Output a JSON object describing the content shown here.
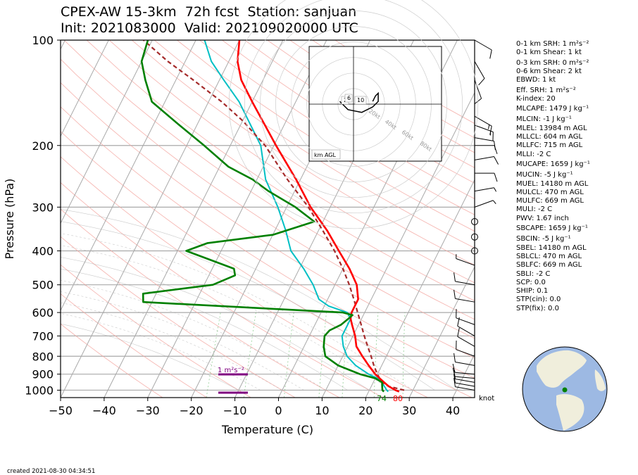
{
  "header": {
    "title_line1": "CPEX-AW 15-3km  72h fcst  Station: sanjuan",
    "title_line2": "Init: 2021083000  Valid: 202109020000 UTC"
  },
  "footer": {
    "created": "created 2021-08-30 04:34:51"
  },
  "chart_data": {
    "type": "line",
    "xlabel": "Temperature (C)",
    "ylabel": "Pressure (hPa)",
    "xlim": [
      -50,
      45
    ],
    "ylim": [
      1050,
      100
    ],
    "y_scale": "log",
    "xticks": [
      -50,
      -40,
      -30,
      -20,
      -10,
      0,
      10,
      20,
      30,
      40
    ],
    "yticks": [
      100,
      200,
      300,
      400,
      500,
      600,
      700,
      800,
      900,
      1000
    ],
    "surface_labels": {
      "dewpoint": "74",
      "temperature": "80"
    },
    "srh_label": "1 m²s⁻²",
    "wind_unit": "knot",
    "colors": {
      "temperature": "#ff0000",
      "dewpoint": "#008000",
      "wetbulb": "#00bfc4",
      "parcel": "#a52a2a",
      "srh": "#800080"
    },
    "temperature": [
      [
        1010,
        27
      ],
      [
        1000,
        26
      ],
      [
        975,
        24
      ],
      [
        950,
        22.5
      ],
      [
        925,
        21
      ],
      [
        900,
        19.5
      ],
      [
        850,
        17
      ],
      [
        800,
        14.5
      ],
      [
        750,
        12
      ],
      [
        700,
        10.5
      ],
      [
        650,
        8.5
      ],
      [
        625,
        7.5
      ],
      [
        600,
        7
      ],
      [
        575,
        7
      ],
      [
        550,
        7
      ],
      [
        500,
        5
      ],
      [
        450,
        1.5
      ],
      [
        400,
        -3
      ],
      [
        350,
        -8
      ],
      [
        300,
        -14.5
      ],
      [
        250,
        -21
      ],
      [
        200,
        -29.5
      ],
      [
        150,
        -40
      ],
      [
        130,
        -45
      ],
      [
        115,
        -48
      ],
      [
        100,
        -50
      ]
    ],
    "dewpoint": [
      [
        1010,
        23.5
      ],
      [
        1000,
        23
      ],
      [
        975,
        22.5
      ],
      [
        950,
        22
      ],
      [
        925,
        20
      ],
      [
        900,
        16
      ],
      [
        850,
        10
      ],
      [
        800,
        6
      ],
      [
        750,
        4.5
      ],
      [
        700,
        3.5
      ],
      [
        675,
        4
      ],
      [
        650,
        6
      ],
      [
        625,
        7
      ],
      [
        610,
        7.5
      ],
      [
        600,
        5
      ],
      [
        560,
        -42
      ],
      [
        530,
        -43
      ],
      [
        500,
        -28
      ],
      [
        470,
        -24
      ],
      [
        450,
        -25
      ],
      [
        400,
        -38
      ],
      [
        380,
        -34
      ],
      [
        360,
        -20
      ],
      [
        330,
        -12
      ],
      [
        300,
        -18
      ],
      [
        270,
        -26
      ],
      [
        250,
        -31
      ],
      [
        230,
        -38
      ],
      [
        200,
        -46
      ],
      [
        175,
        -54
      ],
      [
        150,
        -63
      ],
      [
        130,
        -67
      ],
      [
        115,
        -70
      ],
      [
        100,
        -71
      ]
    ],
    "wetbulb": [
      [
        1010,
        24.5
      ],
      [
        1000,
        24
      ],
      [
        975,
        23
      ],
      [
        950,
        22
      ],
      [
        925,
        20.5
      ],
      [
        900,
        18
      ],
      [
        850,
        14
      ],
      [
        800,
        11
      ],
      [
        750,
        9
      ],
      [
        700,
        7.5
      ],
      [
        650,
        7.5
      ],
      [
        625,
        7.5
      ],
      [
        600,
        6
      ],
      [
        575,
        1
      ],
      [
        550,
        -2
      ],
      [
        500,
        -5
      ],
      [
        450,
        -9
      ],
      [
        400,
        -14
      ],
      [
        350,
        -17.5
      ],
      [
        300,
        -22
      ],
      [
        250,
        -28
      ],
      [
        200,
        -33
      ],
      [
        150,
        -43
      ],
      [
        130,
        -49
      ],
      [
        115,
        -54
      ],
      [
        100,
        -58
      ]
    ],
    "parcel": [
      [
        1000,
        28
      ],
      [
        975,
        24
      ],
      [
        950,
        22
      ],
      [
        925,
        21
      ],
      [
        900,
        20
      ],
      [
        850,
        18.2
      ],
      [
        800,
        16.5
      ],
      [
        750,
        14.6
      ],
      [
        700,
        12.6
      ],
      [
        650,
        10.6
      ],
      [
        600,
        8.4
      ],
      [
        550,
        6
      ],
      [
        500,
        3.3
      ],
      [
        450,
        0
      ],
      [
        400,
        -4
      ],
      [
        350,
        -9
      ],
      [
        300,
        -15
      ],
      [
        250,
        -23
      ],
      [
        200,
        -32
      ],
      [
        170,
        -40
      ],
      [
        150,
        -47
      ],
      [
        130,
        -56
      ],
      [
        115,
        -64
      ],
      [
        100,
        -72
      ]
    ],
    "indices": [
      "0-1 km SRH: 1 m²s⁻²",
      "0-1 km Shear: 1 kt",
      "0-3 km SRH: 0 m²s⁻²",
      "0-6 km Shear: 2 kt",
      "EBWD: 1 kt",
      "Eff. SRH: 1 m²s⁻²",
      "K-index: 20",
      "MLCAPE: 1479 J kg⁻¹",
      "MLCIN: -1 J kg⁻¹",
      "MLEL: 13984 m AGL",
      "MLLCL: 604 m AGL",
      "MLLFC: 715 m AGL",
      "MLLI: -2 C",
      "MUCAPE: 1659 J kg⁻¹",
      "MUCIN: -5 J kg⁻¹",
      "MUEL: 14180 m AGL",
      "MULCL: 470 m AGL",
      "MULFC: 669 m AGL",
      "MULI: -2 C",
      "PWV: 1.67 inch",
      "SBCAPE: 1659 J kg⁻¹",
      "SBCIN: -5 J kg⁻¹",
      "SBEL: 14180 m AGL",
      "SBLCL: 470 m AGL",
      "SBLFC: 669 m AGL",
      "SBLI: -2 C",
      "SCP: 0.0",
      "SHIP: 0.1",
      "STP(cin): 0.0",
      "STP(fix): 0.0"
    ],
    "hodograph": {
      "label": "km AGL",
      "ring_labels": [
        "20kt",
        "40kt",
        "60kt",
        "80kt"
      ],
      "height_labels": [
        "2",
        "6",
        "10"
      ],
      "points": [
        [
          -5,
          1
        ],
        [
          -2,
          -2
        ],
        [
          3,
          -3
        ],
        [
          7,
          -1
        ],
        [
          9,
          1
        ],
        [
          9,
          4
        ],
        [
          8,
          3
        ],
        [
          7,
          1
        ]
      ]
    },
    "wind_barbs": [
      {
        "p": 100,
        "speed": 10,
        "dir": 300
      },
      {
        "p": 115,
        "speed": 10,
        "dir": 330
      },
      {
        "p": 130,
        "speed": 10,
        "dir": 340
      },
      {
        "p": 165,
        "speed": 15,
        "dir": 300
      },
      {
        "p": 175,
        "speed": 15,
        "dir": 290
      },
      {
        "p": 190,
        "speed": 10,
        "dir": 280
      },
      {
        "p": 200,
        "speed": 10,
        "dir": 270
      },
      {
        "p": 220,
        "speed": 10,
        "dir": 260
      },
      {
        "p": 240,
        "speed": 10,
        "dir": 270
      },
      {
        "p": 270,
        "speed": 5,
        "dir": 260
      },
      {
        "p": 300,
        "speed": 5,
        "dir": 250
      },
      {
        "p": 330,
        "speed": 0,
        "dir": 0
      },
      {
        "p": 365,
        "speed": 0,
        "dir": 0
      },
      {
        "p": 400,
        "speed": 0,
        "dir": 0
      },
      {
        "p": 440,
        "speed": 5,
        "dir": 110
      },
      {
        "p": 500,
        "speed": 10,
        "dir": 100
      },
      {
        "p": 560,
        "speed": 10,
        "dir": 100
      },
      {
        "p": 650,
        "speed": 10,
        "dir": 110
      },
      {
        "p": 700,
        "speed": 10,
        "dir": 120
      },
      {
        "p": 750,
        "speed": 10,
        "dir": 120
      },
      {
        "p": 800,
        "speed": 10,
        "dir": 110
      },
      {
        "p": 850,
        "speed": 10,
        "dir": 100
      },
      {
        "p": 900,
        "speed": 10,
        "dir": 95
      },
      {
        "p": 925,
        "speed": 10,
        "dir": 95
      },
      {
        "p": 950,
        "speed": 10,
        "dir": 100
      },
      {
        "p": 975,
        "speed": 10,
        "dir": 100
      },
      {
        "p": 1000,
        "speed": 10,
        "dir": 100
      }
    ]
  }
}
